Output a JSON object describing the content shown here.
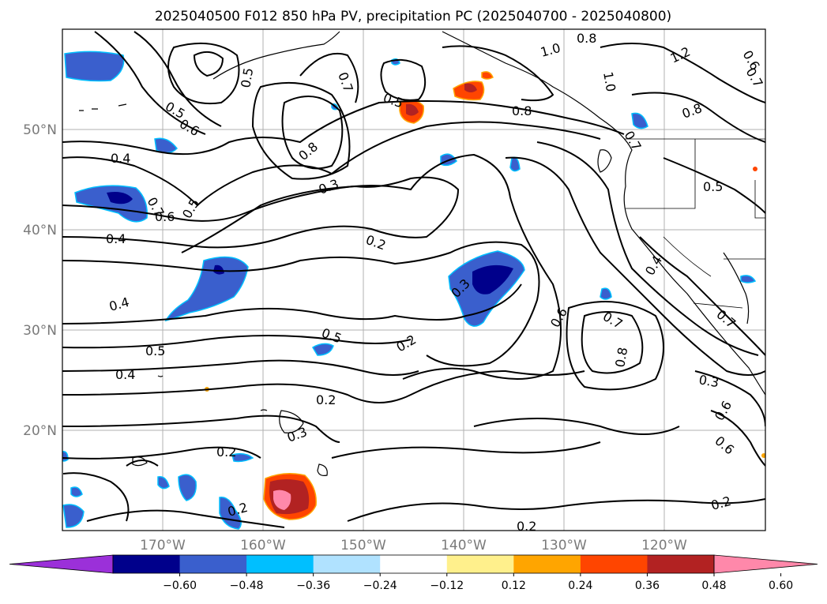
{
  "title": "2025040500 F012 850 hPa PV, precipitation PC (2025040700 - 2025040800)",
  "lat_labels": [
    "50°N",
    "40°N",
    "30°N",
    "20°N"
  ],
  "lon_labels": [
    "170°W",
    "160°W",
    "150°W",
    "140°W",
    "130°W",
    "120°W"
  ],
  "colorbar": {
    "ticks": [
      "−0.60",
      "−0.48",
      "−0.36",
      "−0.24",
      "−0.12",
      "0.12",
      "0.24",
      "0.36",
      "0.48",
      "0.60"
    ],
    "colors": [
      "#9b30d9",
      "#00008b",
      "#3a5fcd",
      "#00bfff",
      "#b0e2ff",
      "#ffffff",
      "#fff08c",
      "#ffa500",
      "#ff4500",
      "#b22222",
      "#ff88aa"
    ],
    "extend": "both"
  },
  "contour_labels": [
    "0.8",
    "1.0",
    "1.2",
    "0.6",
    "0.7",
    "0.5",
    "0.8",
    "0.6",
    "0.4",
    "0.7",
    "0.6",
    "0.5",
    "0.4",
    "0.3",
    "0.8",
    "0.3",
    "0.2",
    "0.4",
    "0.5",
    "0.5",
    "0.4",
    "0.2",
    "0.3",
    "0.2",
    "0.2",
    "0.2",
    "0.5",
    "0.6",
    "0.7",
    "0.8",
    "0.4",
    "0.3",
    "0.2",
    "0.5",
    "0.2",
    "0.6",
    "0.7",
    "0.5",
    "0.7",
    "0.8",
    "1.0",
    "0.7",
    "0.6"
  ]
}
